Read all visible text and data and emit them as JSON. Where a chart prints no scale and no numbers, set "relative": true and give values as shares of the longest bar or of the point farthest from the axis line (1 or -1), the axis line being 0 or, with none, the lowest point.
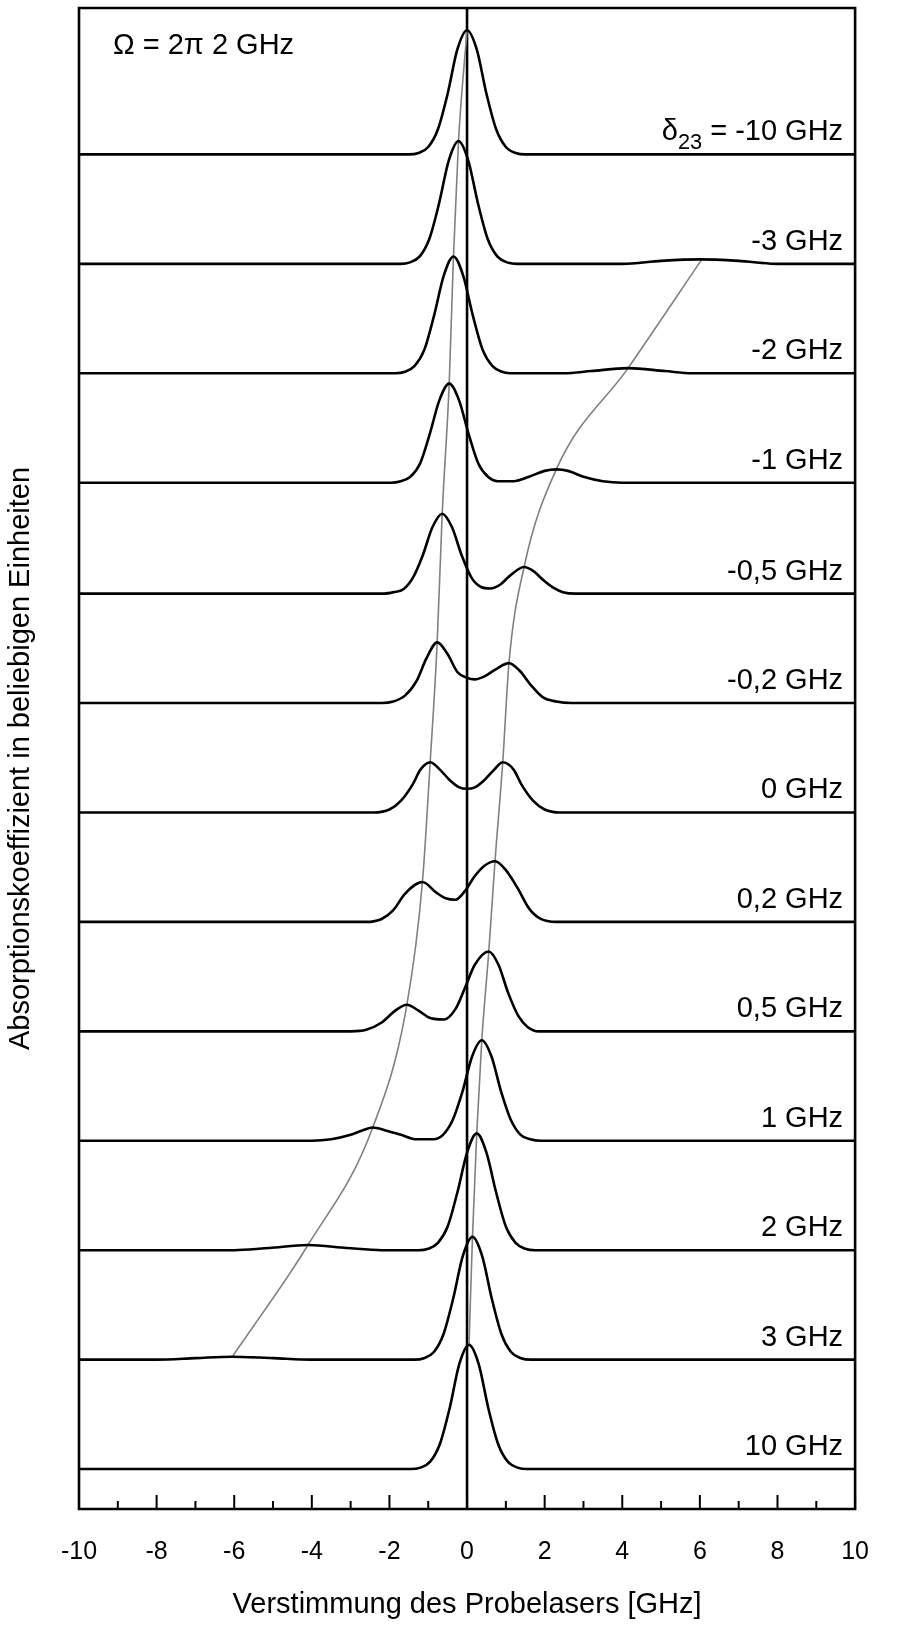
{
  "chart_data": {
    "type": "line",
    "relative": true,
    "xlabel": "Verstimmung des Probelasers [GHz]",
    "ylabel": "Absorptionskoeffizient in beliebigen Einheiten",
    "annotations": [
      "Ω = 2π 2 GHz"
    ],
    "xlim": [
      -10,
      10
    ],
    "xticks": [
      -10,
      {
        "value": -9,
        "label": null
      },
      -8,
      {
        "value": -7,
        "label": null
      },
      -6,
      {
        "value": -5,
        "label": null
      },
      -4,
      {
        "value": -3,
        "label": null
      },
      -2,
      {
        "value": -1,
        "label": null
      },
      0,
      {
        "value": 1,
        "label": null
      },
      2,
      {
        "value": 3,
        "label": null
      },
      4,
      {
        "value": 5,
        "label": null
      },
      6,
      {
        "value": 7,
        "label": null
      },
      8,
      {
        "value": 9,
        "label": null
      },
      10
    ],
    "grid": false,
    "legend": false,
    "marker": "none",
    "line_style": "solid",
    "ref_lines": [
      {
        "axis": "x",
        "value": 0,
        "color": "#000000"
      }
    ],
    "series": [
      {
        "name": "δ$_{23}$ = -10 GHz",
        "color": "#000000",
        "x": [
          -10,
          -1.5,
          -1.25,
          -1,
          -0.75,
          -0.5,
          -0.25,
          0,
          0.25,
          0.5,
          0.75,
          1,
          1.25,
          1.5,
          10
        ],
        "values": [
          0.916,
          0.916,
          0.917,
          0.921,
          0.933,
          0.957,
          0.987,
          1.0,
          0.987,
          0.957,
          0.933,
          0.921,
          0.917,
          0.916,
          0.916
        ]
      },
      {
        "name": "-3 GHz",
        "color": "#000000",
        "x": [
          -10,
          -1.72,
          -1.47,
          -1.22,
          -0.97,
          -0.72,
          -0.47,
          -0.22,
          0.03,
          0.28,
          0.53,
          0.78,
          1.03,
          1.28,
          4,
          5,
          6,
          7,
          8,
          10
        ],
        "values": [
          0.842,
          0.842,
          0.843,
          0.847,
          0.859,
          0.883,
          0.912,
          0.925,
          0.912,
          0.883,
          0.859,
          0.847,
          0.843,
          0.842,
          0.842,
          0.844,
          0.845,
          0.844,
          0.842,
          0.842
        ]
      },
      {
        "name": "-2 GHz",
        "color": "#000000",
        "x": [
          -10,
          -1.85,
          -1.6,
          -1.35,
          -1.1,
          -0.85,
          -0.6,
          -0.35,
          -0.1,
          0.15,
          0.4,
          0.65,
          0.9,
          1.15,
          2.5,
          3.2,
          4.15,
          5.1,
          5.8,
          10
        ],
        "values": [
          0.768,
          0.768,
          0.769,
          0.773,
          0.784,
          0.807,
          0.834,
          0.847,
          0.834,
          0.807,
          0.784,
          0.773,
          0.769,
          0.768,
          0.768,
          0.7695,
          0.7715,
          0.7695,
          0.768,
          0.768
        ]
      },
      {
        "name": "-1 GHz",
        "color": "#000000",
        "x": [
          -10,
          -1.96,
          -1.71,
          -1.46,
          -1.21,
          -0.96,
          -0.71,
          -0.46,
          -0.21,
          0.04,
          0.29,
          0.54,
          0.79,
          1.2,
          1.6,
          2.0,
          2.3,
          2.6,
          3.0,
          3.5,
          4,
          10
        ],
        "values": [
          0.694,
          0.694,
          0.695,
          0.698,
          0.707,
          0.727,
          0.75,
          0.761,
          0.75,
          0.727,
          0.707,
          0.698,
          0.695,
          0.695,
          0.698,
          0.702,
          0.703,
          0.702,
          0.698,
          0.695,
          0.694,
          0.694
        ]
      },
      {
        "name": "-0,5 GHz",
        "color": "#000000",
        "x": [
          -10,
          -2.14,
          -1.89,
          -1.64,
          -1.39,
          -1.14,
          -0.89,
          -0.64,
          -0.39,
          -0.14,
          0.11,
          0.36,
          0.6,
          0.85,
          1.1,
          1.47,
          1.72,
          1.97,
          2.22,
          2.47,
          2.8,
          10
        ],
        "values": [
          0.619,
          0.619,
          0.62,
          0.622,
          0.63,
          0.645,
          0.664,
          0.673,
          0.664,
          0.645,
          0.63,
          0.6235,
          0.6225,
          0.625,
          0.631,
          0.637,
          0.634,
          0.628,
          0.623,
          0.62,
          0.619,
          0.619
        ]
      },
      {
        "name": "-0,2 GHz",
        "color": "#000000",
        "x": [
          -10,
          -2.2,
          -1.9,
          -1.6,
          -1.3,
          -1.05,
          -0.77,
          -0.5,
          -0.25,
          0,
          0.2,
          0.45,
          0.75,
          1.08,
          1.35,
          1.65,
          1.95,
          2.3,
          2.7,
          10
        ],
        "values": [
          0.545,
          0.545,
          0.546,
          0.55,
          0.56,
          0.575,
          0.586,
          0.578,
          0.566,
          0.562,
          0.561,
          0.563,
          0.568,
          0.572,
          0.567,
          0.557,
          0.549,
          0.546,
          0.545,
          0.545
        ]
      },
      {
        "name": "0 GHz",
        "color": "#000000",
        "x": [
          -10,
          -2.4,
          -2.0,
          -1.7,
          -1.4,
          -1.2,
          -0.95,
          -0.7,
          -0.45,
          -0.2,
          0,
          0.2,
          0.45,
          0.7,
          0.92,
          1.2,
          1.4,
          1.7,
          2.0,
          2.4,
          10
        ],
        "values": [
          0.471,
          0.471,
          0.473,
          0.479,
          0.49,
          0.5,
          0.505,
          0.5,
          0.493,
          0.488,
          0.487,
          0.488,
          0.493,
          0.5,
          0.505,
          0.5,
          0.49,
          0.479,
          0.473,
          0.471,
          0.471
        ]
      },
      {
        "name": "0,2 GHz",
        "color": "#000000",
        "x": [
          -10,
          -2.6,
          -2.2,
          -1.9,
          -1.6,
          -1.15,
          -0.8,
          -0.55,
          -0.3,
          -0.05,
          0.2,
          0.45,
          0.72,
          1.0,
          1.3,
          1.6,
          1.9,
          2.3,
          10
        ],
        "values": [
          0.397,
          0.397,
          0.399,
          0.405,
          0.416,
          0.424,
          0.417,
          0.413,
          0.412,
          0.418,
          0.428,
          0.435,
          0.438,
          0.432,
          0.42,
          0.406,
          0.399,
          0.397,
          0.397
        ]
      },
      {
        "name": "0,5 GHz",
        "color": "#000000",
        "x": [
          -10,
          -3.0,
          -2.6,
          -2.2,
          -1.85,
          -1.55,
          -1.25,
          -0.95,
          -0.6,
          -0.3,
          -0.06,
          0.2,
          0.56,
          0.81,
          1.06,
          1.31,
          1.56,
          1.85,
          10
        ],
        "values": [
          0.323,
          0.323,
          0.324,
          0.329,
          0.337,
          0.341,
          0.337,
          0.332,
          0.331,
          0.338,
          0.352,
          0.368,
          0.377,
          0.368,
          0.349,
          0.334,
          0.326,
          0.323,
          0.323
        ]
      },
      {
        "name": "1 GHz",
        "color": "#000000",
        "x": [
          -10,
          -4.0,
          -3.5,
          -3.0,
          -2.7,
          -2.43,
          -2.1,
          -1.7,
          -1.3,
          -0.87,
          -0.62,
          -0.37,
          -0.12,
          0.13,
          0.38,
          0.63,
          0.88,
          1.13,
          1.38,
          1.63,
          1.9,
          10
        ],
        "values": [
          0.249,
          0.249,
          0.25,
          0.253,
          0.256,
          0.258,
          0.256,
          0.253,
          0.25,
          0.25,
          0.253,
          0.263,
          0.282,
          0.306,
          0.317,
          0.306,
          0.282,
          0.263,
          0.253,
          0.25,
          0.249,
          0.249
        ]
      },
      {
        "name": "2 GHz",
        "color": "#000000",
        "x": [
          -10,
          -6,
          -5.1,
          -4.1,
          -3.1,
          -2.2,
          -1.25,
          -1.0,
          -0.75,
          -0.5,
          -0.25,
          0,
          0.25,
          0.5,
          0.75,
          1.0,
          1.25,
          1.5,
          1.75,
          10
        ],
        "values": [
          0.175,
          0.175,
          0.1765,
          0.1785,
          0.1765,
          0.175,
          0.175,
          0.176,
          0.18,
          0.191,
          0.214,
          0.241,
          0.254,
          0.241,
          0.214,
          0.191,
          0.18,
          0.176,
          0.175,
          0.175
        ]
      },
      {
        "name": "3 GHz",
        "color": "#000000",
        "x": [
          -10,
          -8,
          -7,
          -6.05,
          -5,
          -4,
          -1.36,
          -1.11,
          -0.86,
          -0.61,
          -0.36,
          -0.11,
          0.14,
          0.39,
          0.64,
          0.89,
          1.14,
          1.39,
          1.64,
          10
        ],
        "values": [
          0.101,
          0.101,
          0.102,
          0.103,
          0.102,
          0.101,
          0.101,
          0.102,
          0.106,
          0.118,
          0.142,
          0.171,
          0.184,
          0.171,
          0.142,
          0.118,
          0.106,
          0.102,
          0.101,
          0.101
        ]
      },
      {
        "name": "10 GHz",
        "color": "#000000",
        "x": [
          -10,
          -1.45,
          -1.2,
          -0.95,
          -0.7,
          -0.45,
          -0.2,
          0.05,
          0.3,
          0.55,
          0.8,
          1.05,
          1.3,
          1.55,
          10
        ],
        "values": [
          0.027,
          0.027,
          0.028,
          0.032,
          0.044,
          0.068,
          0.098,
          0.111,
          0.098,
          0.068,
          0.044,
          0.032,
          0.028,
          0.027,
          0.027
        ]
      },
      {
        "color": "#808080",
        "x": [
          0,
          -0.22,
          -0.35,
          -0.46,
          -0.64,
          -0.77,
          -0.95,
          -1.15,
          -1.55,
          -2.43,
          -4.1,
          -6.05
        ],
        "values": [
          1.0,
          0.925,
          0.847,
          0.761,
          0.673,
          0.586,
          0.505,
          0.424,
          0.341,
          0.258,
          0.1785,
          0.103
        ]
      },
      {
        "color": "#808080",
        "x": [
          0.05,
          0.14,
          0.25,
          0.38,
          0.56,
          0.72,
          0.92,
          1.08,
          1.47,
          2.3,
          4.15,
          6.05
        ],
        "values": [
          0.111,
          0.184,
          0.254,
          0.317,
          0.377,
          0.438,
          0.505,
          0.572,
          0.637,
          0.703,
          0.7715,
          0.845
        ]
      }
    ]
  }
}
